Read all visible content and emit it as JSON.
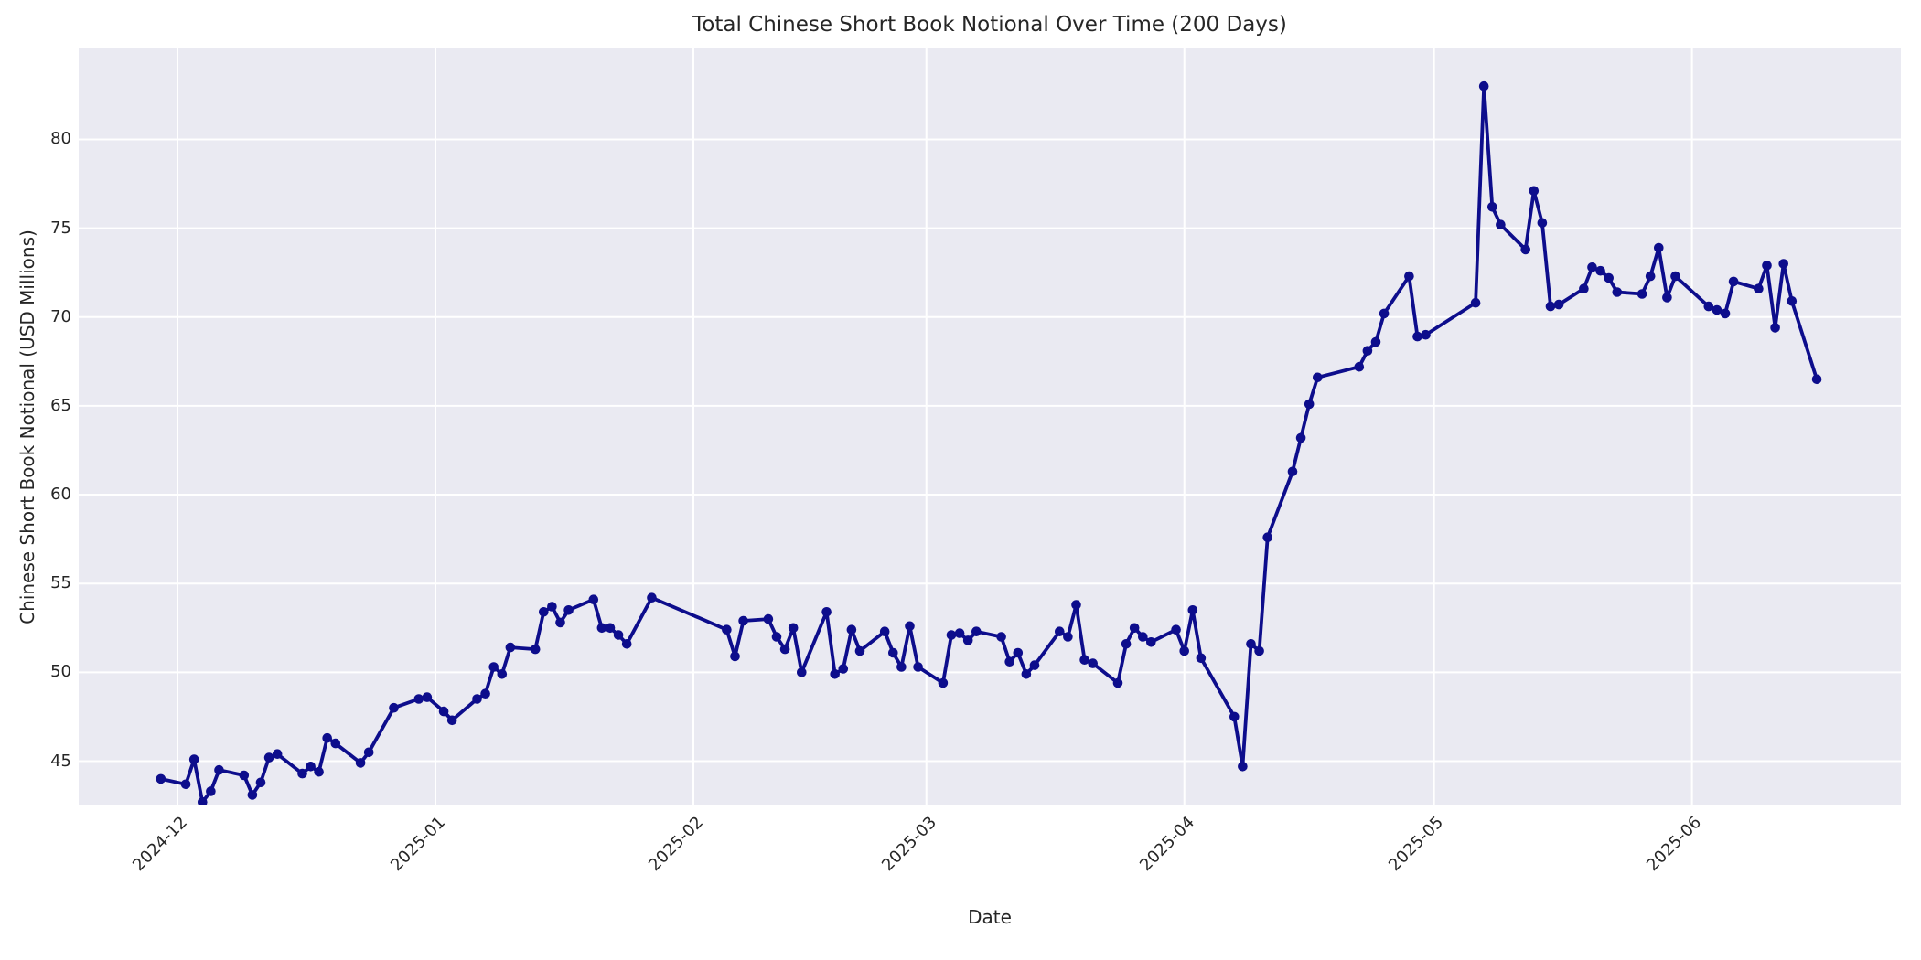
{
  "chart_data": {
    "type": "line",
    "title": "Total Chinese Short Book Notional Over Time (200 Days)",
    "xlabel": "Date",
    "ylabel": "Chinese Short Book Notional (USD Millions)",
    "legend": "none",
    "grid": true,
    "marker": "circle",
    "line_color": "#0d0d8c",
    "plot_bg_color": "#eaeaf2",
    "grid_color": "#ffffff",
    "text_color": "#262626",
    "fig_bg_color": "#ffffff",
    "ylim": [
      42.4,
      85.0
    ],
    "xlim": [
      "2024-11-17",
      "2025-06-26"
    ],
    "y_ticks": [
      45,
      50,
      55,
      60,
      65,
      70,
      75,
      80
    ],
    "x_ticks": [
      {
        "date": "2024-12-01",
        "label": "2024-12"
      },
      {
        "date": "2025-01-01",
        "label": "2025-01"
      },
      {
        "date": "2025-02-01",
        "label": "2025-02"
      },
      {
        "date": "2025-03-01",
        "label": "2025-03"
      },
      {
        "date": "2025-04-01",
        "label": "2025-04"
      },
      {
        "date": "2025-05-01",
        "label": "2025-05"
      },
      {
        "date": "2025-06-01",
        "label": "2025-06"
      }
    ],
    "x": [
      "2024-11-29",
      "2024-12-02",
      "2024-12-03",
      "2024-12-04",
      "2024-12-05",
      "2024-12-06",
      "2024-12-09",
      "2024-12-10",
      "2024-12-11",
      "2024-12-12",
      "2024-12-13",
      "2024-12-16",
      "2024-12-17",
      "2024-12-18",
      "2024-12-19",
      "2024-12-20",
      "2024-12-23",
      "2024-12-24",
      "2024-12-27",
      "2024-12-30",
      "2024-12-31",
      "2025-01-02",
      "2025-01-03",
      "2025-01-06",
      "2025-01-07",
      "2025-01-08",
      "2025-01-09",
      "2025-01-10",
      "2025-01-13",
      "2025-01-14",
      "2025-01-15",
      "2025-01-16",
      "2025-01-17",
      "2025-01-20",
      "2025-01-21",
      "2025-01-22",
      "2025-01-23",
      "2025-01-24",
      "2025-01-27",
      "2025-02-05",
      "2025-02-06",
      "2025-02-07",
      "2025-02-10",
      "2025-02-11",
      "2025-02-12",
      "2025-02-13",
      "2025-02-14",
      "2025-02-17",
      "2025-02-18",
      "2025-02-19",
      "2025-02-20",
      "2025-02-21",
      "2025-02-24",
      "2025-02-25",
      "2025-02-26",
      "2025-02-27",
      "2025-02-28",
      "2025-03-03",
      "2025-03-04",
      "2025-03-05",
      "2025-03-06",
      "2025-03-07",
      "2025-03-10",
      "2025-03-11",
      "2025-03-12",
      "2025-03-13",
      "2025-03-14",
      "2025-03-17",
      "2025-03-18",
      "2025-03-19",
      "2025-03-20",
      "2025-03-21",
      "2025-03-24",
      "2025-03-25",
      "2025-03-26",
      "2025-03-27",
      "2025-03-28",
      "2025-03-31",
      "2025-04-01",
      "2025-04-02",
      "2025-04-03",
      "2025-04-07",
      "2025-04-08",
      "2025-04-09",
      "2025-04-10",
      "2025-04-11",
      "2025-04-14",
      "2025-04-15",
      "2025-04-16",
      "2025-04-17",
      "2025-04-22",
      "2025-04-23",
      "2025-04-24",
      "2025-04-25",
      "2025-04-28",
      "2025-04-29",
      "2025-04-30",
      "2025-05-06",
      "2025-05-07",
      "2025-05-08",
      "2025-05-09",
      "2025-05-12",
      "2025-05-13",
      "2025-05-14",
      "2025-05-15",
      "2025-05-16",
      "2025-05-19",
      "2025-05-20",
      "2025-05-21",
      "2025-05-22",
      "2025-05-23",
      "2025-05-26",
      "2025-05-27",
      "2025-05-28",
      "2025-05-29",
      "2025-05-30",
      "2025-06-03",
      "2025-06-04",
      "2025-06-05",
      "2025-06-06",
      "2025-06-09",
      "2025-06-10",
      "2025-06-11",
      "2025-06-12",
      "2025-06-13",
      "2025-06-16"
    ],
    "y": [
      44.0,
      43.7,
      45.1,
      42.7,
      43.3,
      44.5,
      44.2,
      43.1,
      43.8,
      45.2,
      45.4,
      44.3,
      44.7,
      44.4,
      46.3,
      46.0,
      44.9,
      45.5,
      48.0,
      48.5,
      48.6,
      47.8,
      47.3,
      48.5,
      48.8,
      50.3,
      49.9,
      51.4,
      51.3,
      53.4,
      53.7,
      52.8,
      53.5,
      54.1,
      52.5,
      52.5,
      52.1,
      51.6,
      54.2,
      52.4,
      50.9,
      52.9,
      53.0,
      52.0,
      51.3,
      52.5,
      50.0,
      53.4,
      49.9,
      50.2,
      52.4,
      51.2,
      52.3,
      51.1,
      50.3,
      52.6,
      50.3,
      49.4,
      52.1,
      52.2,
      51.8,
      52.3,
      52.0,
      50.6,
      51.1,
      49.9,
      50.4,
      52.3,
      52.0,
      53.8,
      50.7,
      50.5,
      49.4,
      51.6,
      52.5,
      52.0,
      51.7,
      52.4,
      51.2,
      53.5,
      50.8,
      47.5,
      44.7,
      51.6,
      51.2,
      57.6,
      61.3,
      63.2,
      65.1,
      66.6,
      67.2,
      68.1,
      68.6,
      70.2,
      72.3,
      68.9,
      69.0,
      70.8,
      83.0,
      76.2,
      75.2,
      73.8,
      77.1,
      75.3,
      70.6,
      70.7,
      71.6,
      72.8,
      72.6,
      72.2,
      71.4,
      71.3,
      72.3,
      73.9,
      71.1,
      72.3,
      70.6,
      70.4,
      70.2,
      72.0,
      71.6,
      72.9,
      69.4,
      73.0,
      70.9,
      66.5
    ]
  }
}
